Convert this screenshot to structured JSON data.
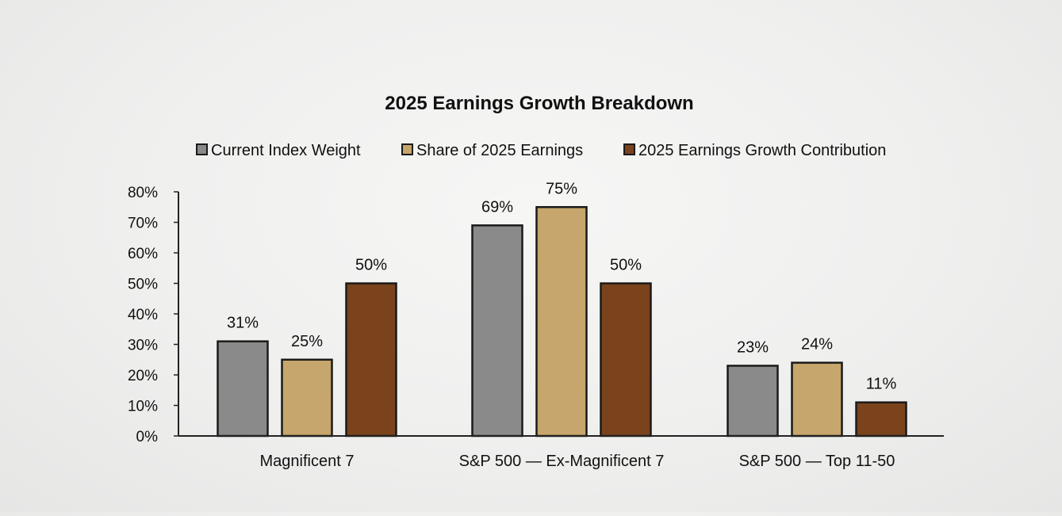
{
  "chart_data": {
    "type": "bar",
    "title": "2025 Earnings Growth Breakdown",
    "categories": [
      "Magnificent 7",
      "S&P 500 — Ex-Magnificent 7",
      "S&P 500 — Top 11-50"
    ],
    "series": [
      {
        "name": "Current Index Weight",
        "values": [
          31,
          69,
          23
        ],
        "labels": [
          "31%",
          "69%",
          "23%"
        ],
        "color": "#8a8a8a"
      },
      {
        "name": "Share of 2025 Earnings",
        "values": [
          25,
          75,
          24
        ],
        "labels": [
          "25%",
          "75%",
          "24%"
        ],
        "color": "#c6a66c"
      },
      {
        "name": "2025 Earnings Growth Contribution",
        "values": [
          50,
          50,
          11
        ],
        "labels": [
          "50%",
          "50%",
          "11%"
        ],
        "color": "#7a431c"
      }
    ],
    "ylim": [
      0,
      80
    ],
    "yticks": [
      "0%",
      "10%",
      "20%",
      "30%",
      "40%",
      "50%",
      "60%",
      "70%",
      "80%"
    ],
    "legend_position": "top",
    "grid": false
  }
}
